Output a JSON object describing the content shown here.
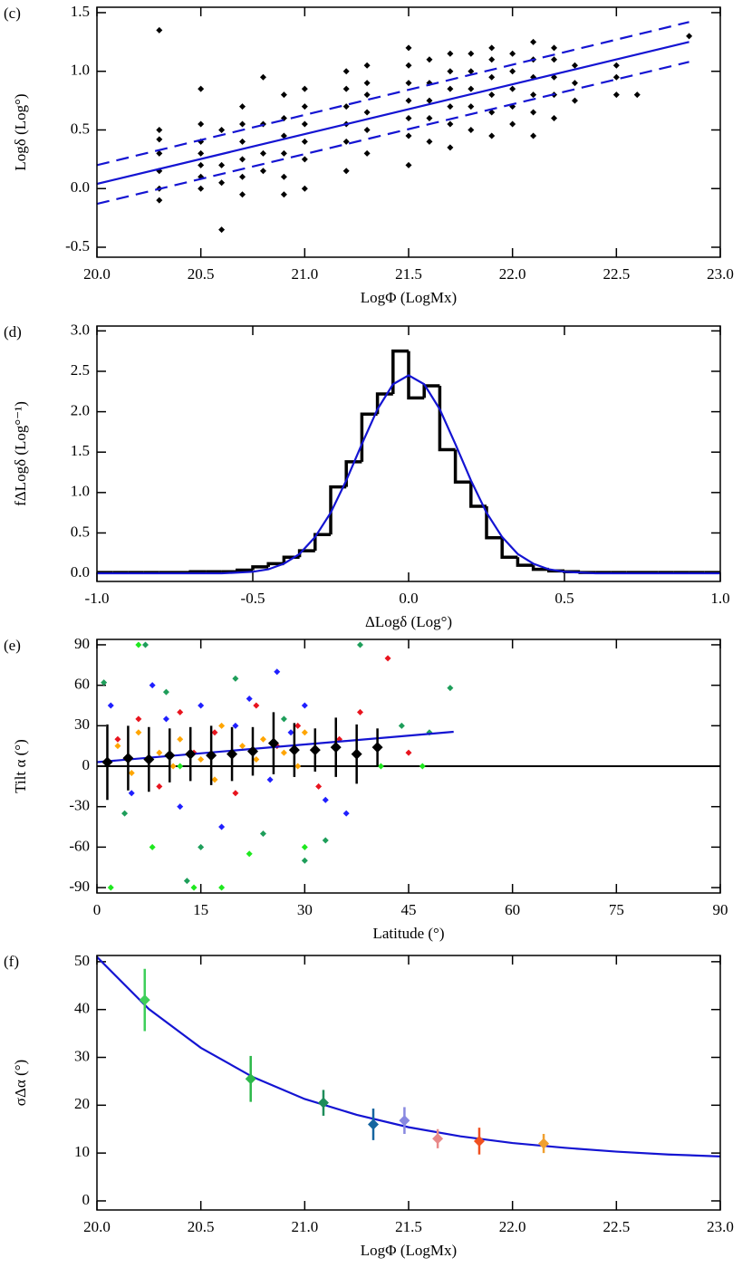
{
  "chart_data": [
    {
      "type": "scatter",
      "panel_label": "(c)",
      "xlabel": "LogΦ (LogMx)",
      "ylabel": "Logδ (Log°)",
      "xlim": [
        20,
        23
      ],
      "ylim": [
        -0.585,
        1.546
      ],
      "xticks": [
        {
          "value": 20,
          "label": "20.0"
        },
        20.5,
        {
          "value": 21,
          "label": "21.0"
        },
        21.5,
        {
          "value": 22,
          "label": "22.0"
        },
        22.5,
        {
          "value": 23,
          "label": "23.0"
        }
      ],
      "yticks": [
        -0.5,
        {
          "value": 0,
          "label": "0.0"
        },
        0.5,
        {
          "value": 1,
          "label": "1.0"
        },
        1.5
      ],
      "point_color": "#000000",
      "line_color": "#1414d2",
      "columns": [
        {
          "x": 20.3,
          "y": [
            -0.1,
            0,
            0.15,
            0.3,
            0.42,
            0.5,
            1.35
          ]
        },
        {
          "x": 20.5,
          "y": [
            0,
            0.1,
            0.2,
            0.3,
            0.4,
            0.55,
            0.85
          ]
        },
        {
          "x": 20.6,
          "y": [
            -0.35,
            0.05,
            0.2,
            0.5
          ]
        },
        {
          "x": 20.7,
          "y": [
            -0.05,
            0.1,
            0.25,
            0.4,
            0.55,
            0.7
          ]
        },
        {
          "x": 20.8,
          "y": [
            0.15,
            0.3,
            0.55,
            0.95
          ]
        },
        {
          "x": 20.9,
          "y": [
            -0.05,
            0.1,
            0.3,
            0.45,
            0.6,
            0.8
          ]
        },
        {
          "x": 21.0,
          "y": [
            0,
            0.25,
            0.4,
            0.55,
            0.7,
            0.85
          ]
        },
        {
          "x": 21.2,
          "y": [
            0.15,
            0.4,
            0.55,
            0.7,
            0.85,
            1.0
          ]
        },
        {
          "x": 21.3,
          "y": [
            0.3,
            0.5,
            0.65,
            0.8,
            0.9,
            1.05
          ]
        },
        {
          "x": 21.5,
          "y": [
            0.2,
            0.45,
            0.6,
            0.75,
            0.9,
            1.05,
            1.2
          ]
        },
        {
          "x": 21.6,
          "y": [
            0.4,
            0.6,
            0.75,
            0.9,
            1.1
          ]
        },
        {
          "x": 21.7,
          "y": [
            0.35,
            0.55,
            0.7,
            0.85,
            1.0,
            1.15
          ]
        },
        {
          "x": 21.8,
          "y": [
            0.5,
            0.7,
            0.85,
            1.0,
            1.15
          ]
        },
        {
          "x": 21.9,
          "y": [
            0.45,
            0.65,
            0.8,
            0.95,
            1.1,
            1.2
          ]
        },
        {
          "x": 22.0,
          "y": [
            0.55,
            0.7,
            0.85,
            1.0,
            1.15
          ]
        },
        {
          "x": 22.1,
          "y": [
            0.45,
            0.65,
            0.8,
            0.95,
            1.1,
            1.25
          ]
        },
        {
          "x": 22.2,
          "y": [
            0.6,
            0.8,
            0.95,
            1.1,
            1.2
          ]
        },
        {
          "x": 22.3,
          "y": [
            0.75,
            0.9,
            1.05
          ]
        },
        {
          "x": 22.5,
          "y": [
            0.8,
            0.95,
            1.05
          ]
        },
        {
          "x": 22.6,
          "y": [
            0.8
          ]
        },
        {
          "x": 22.85,
          "y": [
            1.3
          ]
        }
      ],
      "lines": [
        {
          "x": [
            20,
            22.85
          ],
          "y": [
            0.04,
            1.25
          ],
          "dash": false
        },
        {
          "x": [
            20,
            22.85
          ],
          "y": [
            0.2,
            1.42
          ],
          "dash": true
        },
        {
          "x": [
            20,
            22.85
          ],
          "y": [
            -0.13,
            1.08
          ],
          "dash": true
        }
      ]
    },
    {
      "type": "histogram",
      "panel_label": "(d)",
      "xlabel": "ΔLogδ (Log°)",
      "ylabel": "fΔLogδ (Log°⁻¹)",
      "xlim": [
        -1,
        1
      ],
      "ylim": [
        -0.1,
        3.06
      ],
      "xticks": [
        {
          "value": -1,
          "label": "-1.0"
        },
        -0.5,
        {
          "value": 0,
          "label": "0.0"
        },
        0.5,
        {
          "value": 1,
          "label": "1.0"
        }
      ],
      "yticks": [
        {
          "value": 0,
          "label": "0.0"
        },
        0.5,
        {
          "value": 1,
          "label": "1.0"
        },
        1.5,
        {
          "value": 2,
          "label": "2.0"
        },
        2.5,
        {
          "value": 3,
          "label": "3.0"
        }
      ],
      "bar_color": "#000000",
      "line_color": "#1414d2",
      "bins": [
        -1,
        -0.95,
        -0.9,
        -0.85,
        -0.8,
        -0.75,
        -0.7,
        -0.65,
        -0.6,
        -0.55,
        -0.5,
        -0.45,
        -0.4,
        -0.35,
        -0.3,
        -0.25,
        -0.2,
        -0.15,
        -0.1,
        -0.05,
        0,
        0.05,
        0.1,
        0.15,
        0.2,
        0.25,
        0.3,
        0.35,
        0.4,
        0.45,
        0.5,
        0.55,
        0.6,
        0.65,
        0.7,
        0.75,
        0.8,
        0.85,
        0.9,
        0.95,
        1
      ],
      "counts": [
        0.01,
        0.01,
        0.01,
        0.01,
        0.01,
        0.01,
        0.02,
        0.02,
        0.02,
        0.04,
        0.08,
        0.12,
        0.2,
        0.28,
        0.48,
        1.07,
        1.38,
        1.97,
        2.22,
        2.75,
        2.17,
        2.32,
        1.53,
        1.13,
        0.83,
        0.44,
        0.2,
        0.1,
        0.05,
        0.03,
        0.02,
        0.01,
        0.01,
        0.01,
        0.01,
        0.01,
        0.01,
        0.01,
        0.01,
        0.01
      ],
      "fit": {
        "x": [
          -1,
          -0.6,
          -0.5,
          -0.45,
          -0.4,
          -0.35,
          -0.3,
          -0.25,
          -0.2,
          -0.15,
          -0.1,
          -0.05,
          0,
          0.05,
          0.1,
          0.15,
          0.2,
          0.25,
          0.3,
          0.35,
          0.4,
          0.45,
          0.5,
          0.6,
          1
        ],
        "y": [
          0,
          0,
          0.02,
          0.05,
          0.12,
          0.24,
          0.45,
          0.75,
          1.15,
          1.6,
          2.03,
          2.34,
          2.45,
          2.34,
          2.03,
          1.6,
          1.15,
          0.75,
          0.45,
          0.24,
          0.12,
          0.05,
          0.02,
          0,
          0
        ]
      }
    },
    {
      "type": "scatter",
      "panel_label": "(e)",
      "xlabel": "Latitude (°)",
      "ylabel": "Tilt α (°)",
      "xlim": [
        0,
        90
      ],
      "ylim": [
        -94,
        94
      ],
      "xticks": [
        0,
        15,
        30,
        45,
        60,
        75,
        90
      ],
      "yticks": [
        -90,
        -60,
        -30,
        0,
        30,
        60,
        90
      ],
      "hline": 0,
      "line_color": "#1414d2",
      "groups": [
        {
          "color": "#1f1fff",
          "x": [
            2,
            5,
            8,
            10,
            12,
            15,
            18,
            20,
            22,
            25,
            28,
            30,
            33,
            36,
            26
          ],
          "y": [
            45,
            -20,
            60,
            35,
            -30,
            45,
            -45,
            30,
            50,
            -10,
            25,
            45,
            -25,
            -35,
            70
          ]
        },
        {
          "color": "#e8141e",
          "x": [
            3,
            6,
            9,
            12,
            14,
            17,
            20,
            23,
            26,
            29,
            32,
            35,
            38,
            42,
            45
          ],
          "y": [
            20,
            35,
            -15,
            40,
            10,
            25,
            -20,
            45,
            15,
            30,
            -15,
            20,
            40,
            80,
            10
          ]
        },
        {
          "color": "#1e9e5a",
          "x": [
            1,
            4,
            7,
            10,
            15,
            20,
            24,
            27,
            33,
            38,
            44,
            48,
            51,
            13,
            30
          ],
          "y": [
            62,
            -35,
            90,
            55,
            -60,
            65,
            -50,
            35,
            -55,
            90,
            30,
            25,
            58,
            -85,
            -70
          ]
        },
        {
          "color": "#1ee81e",
          "x": [
            2,
            8,
            14,
            22,
            30,
            41,
            47,
            6,
            18,
            12
          ],
          "y": [
            -90,
            -60,
            -90,
            -65,
            -60,
            0,
            0,
            90,
            -90,
            0
          ]
        },
        {
          "color": "#ffa500",
          "x": [
            3,
            6,
            9,
            12,
            15,
            18,
            21,
            24,
            27,
            30,
            5,
            11,
            17,
            23,
            29
          ],
          "y": [
            15,
            25,
            10,
            20,
            5,
            30,
            15,
            20,
            10,
            25,
            -5,
            0,
            -10,
            5,
            0
          ]
        }
      ],
      "means": {
        "color": "#000000",
        "x": [
          1.5,
          4.5,
          7.5,
          10.5,
          13.5,
          16.5,
          19.5,
          22.5,
          25.5,
          28.5,
          31.5,
          34.5,
          37.5,
          40.5
        ],
        "y": [
          3,
          6,
          5,
          8,
          9,
          8,
          9,
          11,
          17,
          12,
          12,
          14,
          9,
          14
        ],
        "error": [
          28,
          24,
          24,
          20,
          20,
          22,
          20,
          18,
          23,
          20,
          16,
          22,
          22,
          14
        ]
      },
      "lines": [
        {
          "x": [
            0,
            51.5
          ],
          "y": [
            3,
            25.5
          ],
          "dash": false
        }
      ]
    },
    {
      "type": "errorbar",
      "panel_label": "(f)",
      "xlabel": "LogΦ (LogMx)",
      "ylabel": "σΔα (°)",
      "xlim": [
        20,
        23
      ],
      "ylim": [
        -1.9,
        51.3
      ],
      "xticks": [
        {
          "value": 20,
          "label": "20.0"
        },
        20.5,
        {
          "value": 21,
          "label": "21.0"
        },
        21.5,
        {
          "value": 22,
          "label": "22.0"
        },
        22.5,
        {
          "value": 23,
          "label": "23.0"
        }
      ],
      "yticks": [
        0,
        10,
        20,
        30,
        40,
        50
      ],
      "line_color": "#1414d2",
      "points": {
        "x": [
          20.23,
          20.74,
          21.09,
          21.33,
          21.48,
          21.64,
          21.84,
          22.15
        ],
        "y": [
          42,
          25.5,
          20.5,
          16,
          16.8,
          13,
          12.5,
          12
        ],
        "error": [
          6.5,
          4.8,
          2.7,
          3.3,
          2.8,
          2,
          2.8,
          2
        ],
        "colors": [
          "#3ecf5a",
          "#2cb84a",
          "#1e8c5a",
          "#1565a0",
          "#8888e0",
          "#e88888",
          "#f05020",
          "#f0a030"
        ]
      },
      "fit": {
        "x": [
          20,
          20.25,
          20.5,
          20.75,
          21,
          21.25,
          21.5,
          21.75,
          22,
          22.25,
          22.5,
          22.75,
          23
        ],
        "y": [
          51,
          40.1,
          32,
          25.9,
          21.3,
          18,
          15.4,
          13.5,
          12.1,
          11.1,
          10.3,
          9.7,
          9.3
        ]
      }
    }
  ]
}
